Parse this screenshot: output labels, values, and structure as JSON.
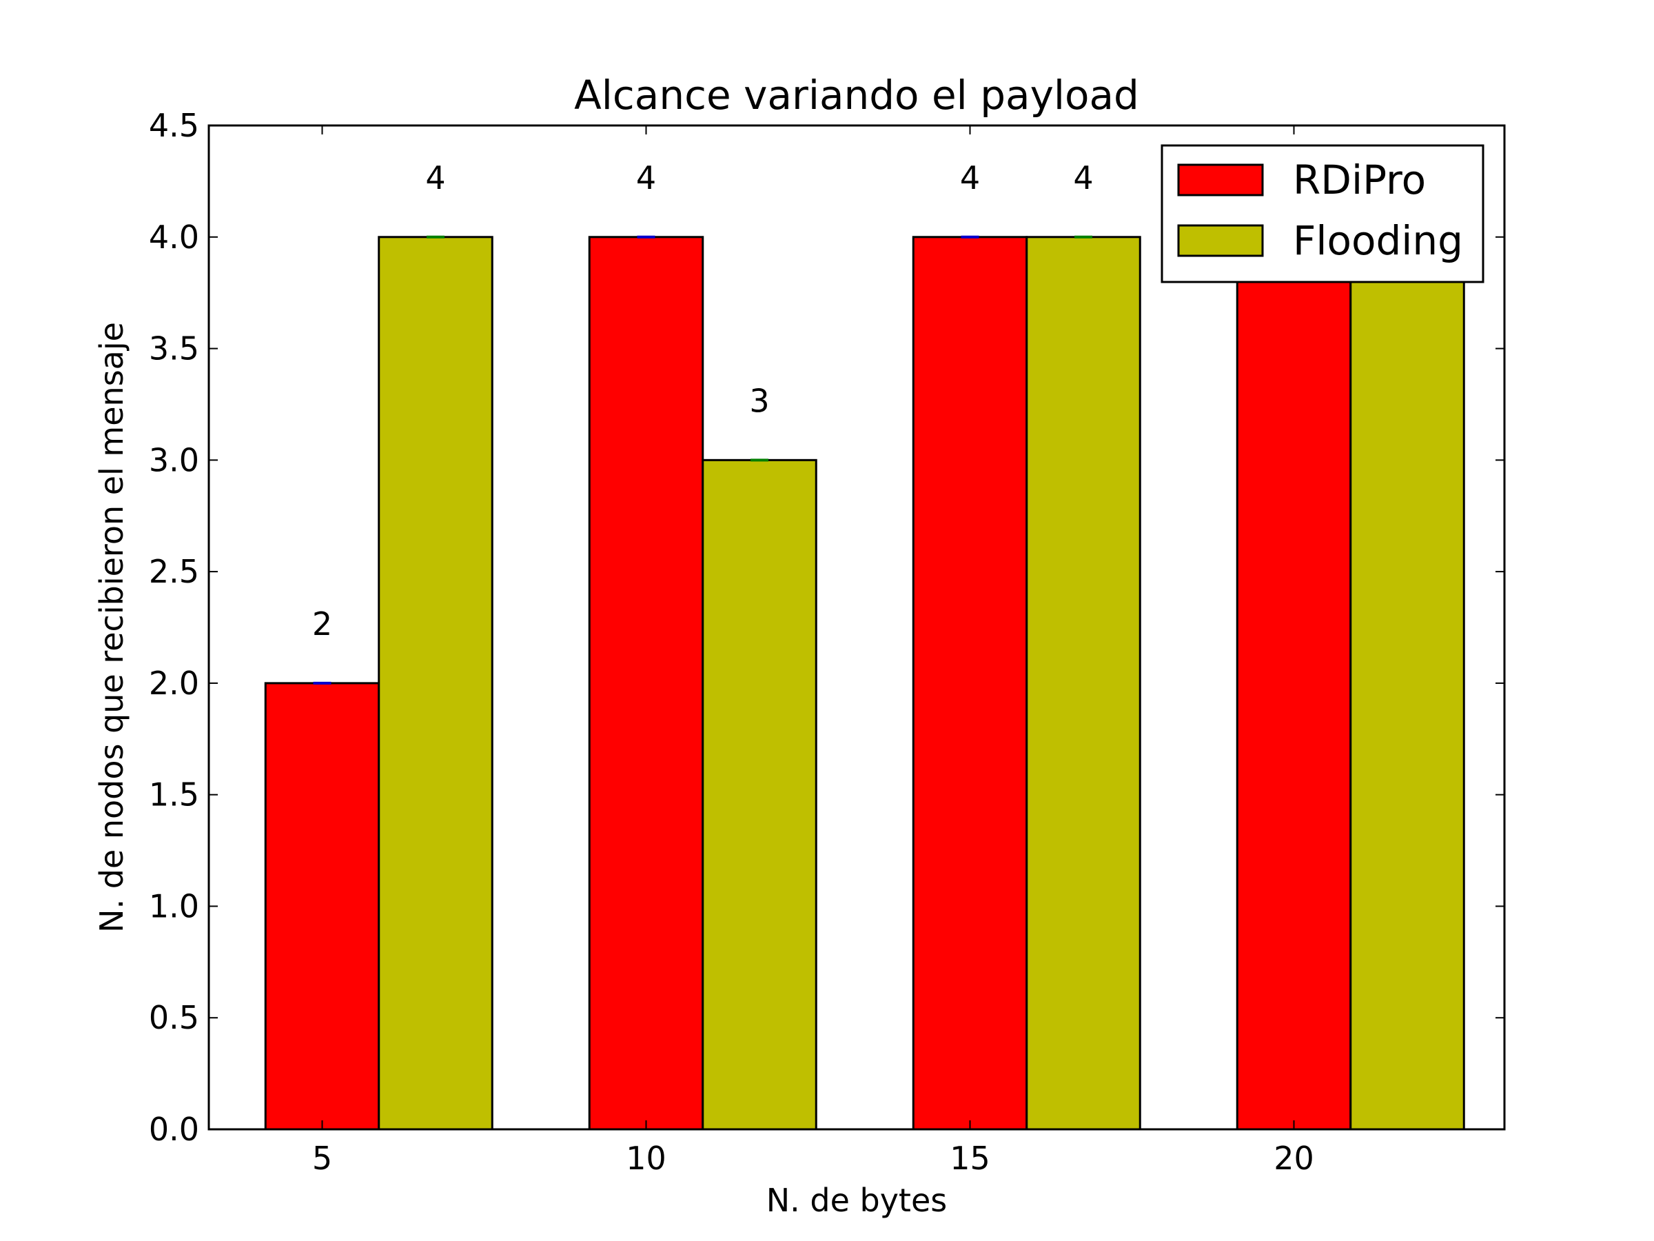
{
  "chart_data": {
    "type": "bar",
    "title": "Alcance variando el payload",
    "xlabel": "N. de bytes",
    "ylabel": "N. de nodos que recibieron el mensaje",
    "categories": [
      "5",
      "10",
      "15",
      "20"
    ],
    "series": [
      {
        "name": "RDiPro",
        "values": [
          2,
          4,
          4,
          4
        ],
        "color": "#ff0000",
        "value_labels": [
          "2",
          "4",
          "4",
          ""
        ],
        "errorbar_color": "#0000cc"
      },
      {
        "name": "Flooding",
        "values": [
          4,
          3,
          4,
          4
        ],
        "color": "#bfbf00",
        "value_labels": [
          "4",
          "3",
          "4",
          ""
        ],
        "errorbar_color": "#007f00"
      }
    ],
    "ylim": [
      0,
      4.5
    ],
    "xlim": [
      3.25,
      23.25
    ],
    "bar_width": 1.75,
    "yticks": [
      0.0,
      0.5,
      1.0,
      1.5,
      2.0,
      2.5,
      3.0,
      3.5,
      4.0,
      4.5
    ],
    "ytick_labels": [
      "0.0",
      "0.5",
      "1.0",
      "1.5",
      "2.0",
      "2.5",
      "3.0",
      "3.5",
      "4.0",
      "4.5"
    ],
    "xticks": [
      5,
      10,
      15,
      20
    ],
    "xtick_labels": [
      "5",
      "10",
      "15",
      "20"
    ],
    "grid": false,
    "legend_position": "top-right"
  }
}
